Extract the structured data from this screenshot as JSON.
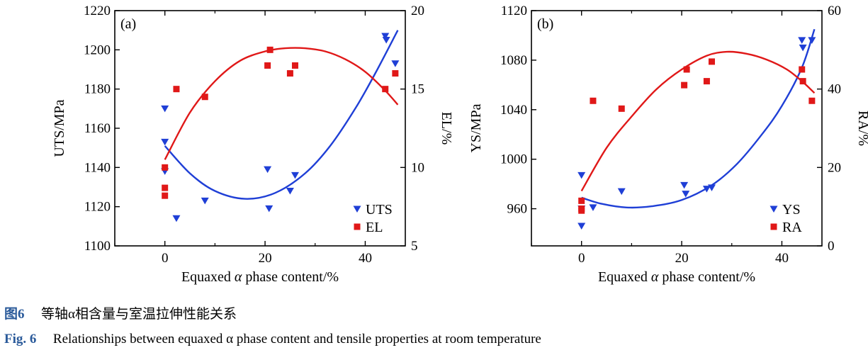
{
  "chart_data": [
    {
      "type": "scatter",
      "panel_label": "(a)",
      "xlabel_prefix": "Equaxed",
      "xlabel_symbol": "α",
      "xlabel_suffix": "phase content/%",
      "xlim": [
        -10,
        48
      ],
      "xticks": [
        0,
        20,
        40
      ],
      "left_axis": {
        "label": "UTS/MPa",
        "lim": [
          1100,
          1220
        ],
        "ticks": [
          1100,
          1120,
          1140,
          1160,
          1180,
          1200,
          1220
        ]
      },
      "right_axis": {
        "label": "EL/%",
        "lim": [
          5,
          20
        ],
        "ticks": [
          5,
          10,
          15,
          20
        ]
      },
      "series": [
        {
          "name": "UTS",
          "axis": "left",
          "marker": "triangle-down",
          "color": "#1f3fd6",
          "points": [
            [
              0,
              1170
            ],
            [
              0,
              1153
            ],
            [
              0,
              1138
            ],
            [
              2.3,
              1114
            ],
            [
              8,
              1123
            ],
            [
              20.5,
              1139
            ],
            [
              20.8,
              1119
            ],
            [
              25,
              1128
            ],
            [
              26,
              1136
            ],
            [
              44,
              1207
            ],
            [
              44.2,
              1205
            ],
            [
              46,
              1193
            ]
          ],
          "fit": [
            [
              0,
              1151
            ],
            [
              5,
              1137
            ],
            [
              10,
              1128
            ],
            [
              16,
              1124
            ],
            [
              22,
              1127
            ],
            [
              28,
              1137
            ],
            [
              33,
              1151
            ],
            [
              38,
              1170
            ],
            [
              42,
              1188
            ],
            [
              46.5,
              1210
            ]
          ]
        },
        {
          "name": "EL",
          "axis": "right",
          "marker": "square",
          "color": "#e01818",
          "points": [
            [
              0,
              10
            ],
            [
              0,
              8.7
            ],
            [
              0,
              8.2
            ],
            [
              2.3,
              15
            ],
            [
              8,
              14.5
            ],
            [
              20.5,
              16.5
            ],
            [
              21,
              17.5
            ],
            [
              25,
              16
            ],
            [
              26,
              16.5
            ],
            [
              44,
              15
            ],
            [
              46,
              16
            ]
          ],
          "fit": [
            [
              0,
              10.5
            ],
            [
              5,
              13.5
            ],
            [
              10,
              15.5
            ],
            [
              15,
              16.8
            ],
            [
              20,
              17.4
            ],
            [
              24,
              17.6
            ],
            [
              28,
              17.6
            ],
            [
              32,
              17.4
            ],
            [
              36,
              16.9
            ],
            [
              40,
              16.1
            ],
            [
              44,
              14.9
            ],
            [
              46.5,
              14.0
            ]
          ]
        }
      ]
    },
    {
      "type": "scatter",
      "panel_label": "(b)",
      "xlabel_prefix": "Equaxed",
      "xlabel_symbol": "α",
      "xlabel_suffix": "phase content/%",
      "xlim": [
        -10,
        48
      ],
      "xticks": [
        0,
        20,
        40
      ],
      "left_axis": {
        "label": "YS/MPa",
        "lim": [
          930,
          1120
        ],
        "ticks": [
          960,
          1000,
          1040,
          1080,
          1120
        ]
      },
      "right_axis": {
        "label": "RA/%",
        "lim": [
          0,
          60
        ],
        "ticks": [
          0,
          20,
          40,
          60
        ]
      },
      "series": [
        {
          "name": "YS",
          "axis": "left",
          "marker": "triangle-down",
          "color": "#1f3fd6",
          "points": [
            [
              0,
              987
            ],
            [
              0,
              960
            ],
            [
              0,
              946
            ],
            [
              2.3,
              961
            ],
            [
              8,
              974
            ],
            [
              20.5,
              979
            ],
            [
              20.8,
              972
            ],
            [
              25,
              976
            ],
            [
              26,
              977
            ],
            [
              44,
              1096
            ],
            [
              44.2,
              1090
            ],
            [
              46,
              1096
            ]
          ],
          "fit": [
            [
              0,
              969
            ],
            [
              4,
              964
            ],
            [
              9,
              961
            ],
            [
              14,
              962
            ],
            [
              20,
              967
            ],
            [
              26,
              979
            ],
            [
              31,
              996
            ],
            [
              36,
              1020
            ],
            [
              40,
              1043
            ],
            [
              44,
              1074
            ],
            [
              46.5,
              1105
            ]
          ]
        },
        {
          "name": "RA",
          "axis": "right",
          "marker": "square",
          "color": "#e01818",
          "points": [
            [
              0,
              11.5
            ],
            [
              0,
              9.5
            ],
            [
              0,
              9
            ],
            [
              2.3,
              37
            ],
            [
              8,
              35
            ],
            [
              20.5,
              41
            ],
            [
              21,
              45
            ],
            [
              25,
              42
            ],
            [
              26,
              47
            ],
            [
              44,
              45
            ],
            [
              44.2,
              42
            ],
            [
              46,
              37
            ]
          ],
          "fit": [
            [
              0,
              14
            ],
            [
              5,
              25
            ],
            [
              10,
              33
            ],
            [
              15,
              40
            ],
            [
              20,
              45
            ],
            [
              25,
              48.5
            ],
            [
              29,
              49.5
            ],
            [
              33,
              49
            ],
            [
              37,
              47.5
            ],
            [
              41,
              45
            ],
            [
              44,
              42
            ],
            [
              46.5,
              39
            ]
          ]
        }
      ]
    }
  ],
  "captions": {
    "zh_label": "图6",
    "zh_text": "等轴α相含量与室温拉伸性能关系",
    "en_label": "Fig. 6",
    "en_text": "Relationships between equaxed α phase content and tensile properties at room temperature"
  }
}
